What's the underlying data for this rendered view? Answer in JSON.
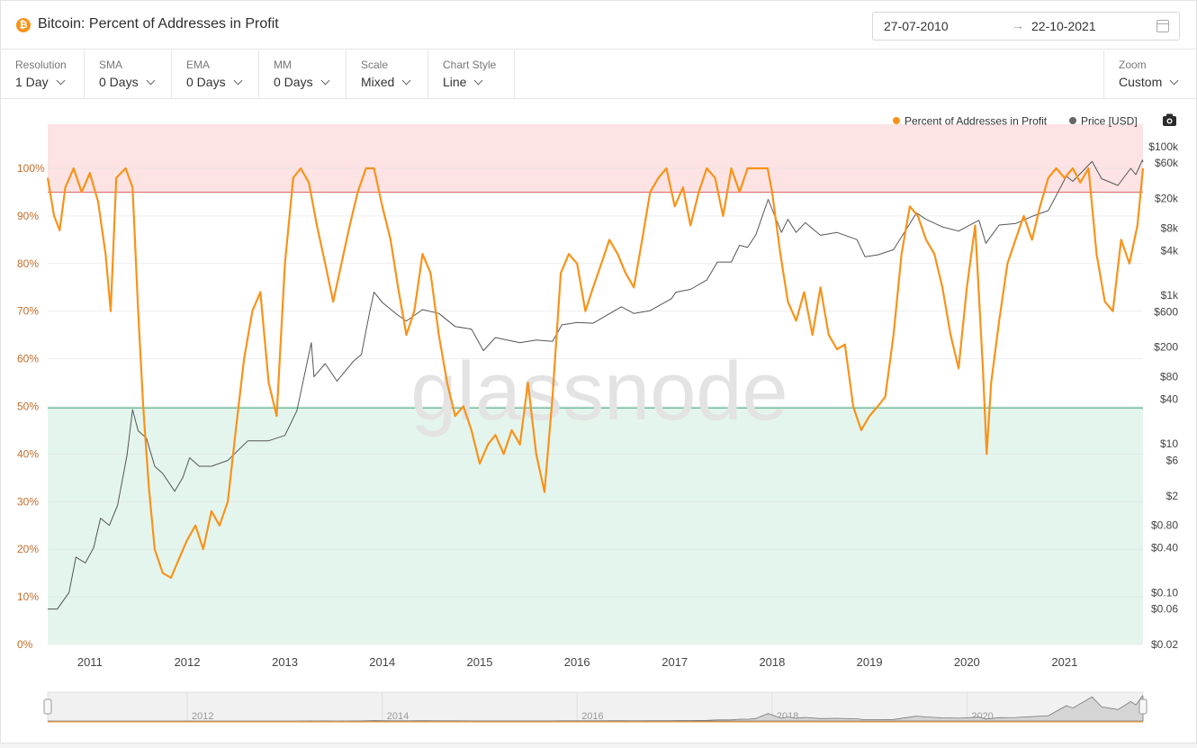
{
  "header": {
    "title": "Bitcoin: Percent of Addresses in Profit",
    "date_from": "27-07-2010",
    "date_arrow": "→",
    "date_to": "22-10-2021"
  },
  "controls": [
    {
      "label": "Resolution",
      "value": "1 Day"
    },
    {
      "label": "SMA",
      "value": "0 Days"
    },
    {
      "label": "EMA",
      "value": "0 Days"
    },
    {
      "label": "MM",
      "value": "0 Days"
    },
    {
      "label": "Scale",
      "value": "Mixed"
    },
    {
      "label": "Chart Style",
      "value": "Line"
    }
  ],
  "zoom": {
    "label": "Zoom",
    "value": "Custom"
  },
  "watermark": "glassnode",
  "colors": {
    "profit": "#f7931a",
    "price": "#555555",
    "upper_band": "#fde3e3",
    "lower_band": "#e4f5ee",
    "upper_line": "#e06666",
    "lower_line": "#2e9e6e"
  },
  "chart_data": {
    "type": "line",
    "title": "Bitcoin: Percent of Addresses in Profit",
    "x_range": [
      "2010-07-27",
      "2021-10-22"
    ],
    "x_ticks": [
      "2011",
      "2012",
      "2013",
      "2014",
      "2015",
      "2016",
      "2017",
      "2018",
      "2019",
      "2020",
      "2021"
    ],
    "left_axis": {
      "scale": "linear",
      "range": [
        0,
        100
      ],
      "ticks": [
        "0%",
        "10%",
        "20%",
        "30%",
        "40%",
        "50%",
        "60%",
        "70%",
        "80%",
        "90%",
        "100%"
      ]
    },
    "right_axis": {
      "scale": "log",
      "range": [
        0.02,
        200000
      ],
      "ticks": [
        {
          "label": "$0.02",
          "value": 0.02
        },
        {
          "label": "$0.06",
          "value": 0.06
        },
        {
          "label": "$0.10",
          "value": 0.1
        },
        {
          "label": "$0.40",
          "value": 0.4
        },
        {
          "label": "$0.80",
          "value": 0.8
        },
        {
          "label": "$2",
          "value": 2
        },
        {
          "label": "$6",
          "value": 6
        },
        {
          "label": "$10",
          "value": 10
        },
        {
          "label": "$40",
          "value": 40
        },
        {
          "label": "$80",
          "value": 80
        },
        {
          "label": "$200",
          "value": 200
        },
        {
          "label": "$600",
          "value": 600
        },
        {
          "label": "$1k",
          "value": 1000
        },
        {
          "label": "$4k",
          "value": 4000
        },
        {
          "label": "$8k",
          "value": 8000
        },
        {
          "label": "$20k",
          "value": 20000
        },
        {
          "label": "$60k",
          "value": 60000
        },
        {
          "label": "$100k",
          "value": 100000
        }
      ]
    },
    "bands": {
      "upper": [
        95,
        109
      ],
      "lower": [
        0,
        49.7
      ]
    },
    "legend": [
      {
        "name": "Percent of Addresses in Profit",
        "color": "#f7931a"
      },
      {
        "name": "Price [USD]",
        "color": "#666666"
      }
    ],
    "legend_position": "top-right",
    "grid": true,
    "series": [
      {
        "name": "Percent of Addresses in Profit",
        "axis": "left",
        "points": [
          [
            "2010-07-27",
            98
          ],
          [
            "2010-08-20",
            90
          ],
          [
            "2010-09-10",
            87
          ],
          [
            "2010-10-01",
            96
          ],
          [
            "2010-11-01",
            100
          ],
          [
            "2010-12-01",
            95
          ],
          [
            "2011-01-01",
            99
          ],
          [
            "2011-02-01",
            93
          ],
          [
            "2011-03-01",
            82
          ],
          [
            "2011-03-20",
            70
          ],
          [
            "2011-04-10",
            98
          ],
          [
            "2011-05-15",
            100
          ],
          [
            "2011-06-10",
            96
          ],
          [
            "2011-07-01",
            70
          ],
          [
            "2011-07-20",
            50
          ],
          [
            "2011-08-10",
            33
          ],
          [
            "2011-09-01",
            20
          ],
          [
            "2011-10-01",
            15
          ],
          [
            "2011-11-01",
            14
          ],
          [
            "2011-12-01",
            18
          ],
          [
            "2012-01-01",
            22
          ],
          [
            "2012-02-01",
            25
          ],
          [
            "2012-03-01",
            20
          ],
          [
            "2012-04-01",
            28
          ],
          [
            "2012-05-01",
            25
          ],
          [
            "2012-06-01",
            30
          ],
          [
            "2012-07-01",
            45
          ],
          [
            "2012-08-01",
            60
          ],
          [
            "2012-09-01",
            70
          ],
          [
            "2012-10-01",
            74
          ],
          [
            "2012-11-01",
            55
          ],
          [
            "2012-12-01",
            48
          ],
          [
            "2013-01-01",
            80
          ],
          [
            "2013-02-01",
            98
          ],
          [
            "2013-03-01",
            100
          ],
          [
            "2013-04-01",
            97
          ],
          [
            "2013-05-01",
            88
          ],
          [
            "2013-06-01",
            80
          ],
          [
            "2013-07-01",
            72
          ],
          [
            "2013-08-01",
            80
          ],
          [
            "2013-09-01",
            88
          ],
          [
            "2013-10-01",
            95
          ],
          [
            "2013-11-01",
            100
          ],
          [
            "2013-12-01",
            100
          ],
          [
            "2014-01-01",
            92
          ],
          [
            "2014-02-01",
            85
          ],
          [
            "2014-03-01",
            75
          ],
          [
            "2014-04-01",
            65
          ],
          [
            "2014-05-01",
            70
          ],
          [
            "2014-06-01",
            82
          ],
          [
            "2014-07-01",
            78
          ],
          [
            "2014-08-01",
            65
          ],
          [
            "2014-09-01",
            55
          ],
          [
            "2014-10-01",
            48
          ],
          [
            "2014-11-01",
            50
          ],
          [
            "2014-12-01",
            45
          ],
          [
            "2015-01-01",
            38
          ],
          [
            "2015-02-01",
            42
          ],
          [
            "2015-03-01",
            44
          ],
          [
            "2015-04-01",
            40
          ],
          [
            "2015-05-01",
            45
          ],
          [
            "2015-06-01",
            42
          ],
          [
            "2015-07-01",
            55
          ],
          [
            "2015-08-01",
            40
          ],
          [
            "2015-09-01",
            32
          ],
          [
            "2015-10-01",
            52
          ],
          [
            "2015-11-01",
            78
          ],
          [
            "2015-12-01",
            82
          ],
          [
            "2016-01-01",
            80
          ],
          [
            "2016-02-01",
            70
          ],
          [
            "2016-03-01",
            75
          ],
          [
            "2016-04-01",
            80
          ],
          [
            "2016-05-01",
            85
          ],
          [
            "2016-06-01",
            82
          ],
          [
            "2016-07-01",
            78
          ],
          [
            "2016-08-01",
            75
          ],
          [
            "2016-09-01",
            85
          ],
          [
            "2016-10-01",
            95
          ],
          [
            "2016-11-01",
            98
          ],
          [
            "2016-12-01",
            100
          ],
          [
            "2017-01-01",
            92
          ],
          [
            "2017-02-01",
            96
          ],
          [
            "2017-03-01",
            88
          ],
          [
            "2017-04-01",
            95
          ],
          [
            "2017-05-01",
            100
          ],
          [
            "2017-06-01",
            98
          ],
          [
            "2017-07-01",
            90
          ],
          [
            "2017-08-01",
            100
          ],
          [
            "2017-09-01",
            95
          ],
          [
            "2017-10-01",
            100
          ],
          [
            "2017-11-01",
            100
          ],
          [
            "2017-12-15",
            100
          ],
          [
            "2018-01-01",
            95
          ],
          [
            "2018-02-01",
            82
          ],
          [
            "2018-03-01",
            72
          ],
          [
            "2018-04-01",
            68
          ],
          [
            "2018-05-01",
            74
          ],
          [
            "2018-06-01",
            65
          ],
          [
            "2018-07-01",
            75
          ],
          [
            "2018-08-01",
            65
          ],
          [
            "2018-09-01",
            62
          ],
          [
            "2018-10-01",
            63
          ],
          [
            "2018-11-01",
            50
          ],
          [
            "2018-12-01",
            45
          ],
          [
            "2019-01-01",
            48
          ],
          [
            "2019-02-01",
            50
          ],
          [
            "2019-03-01",
            52
          ],
          [
            "2019-04-01",
            65
          ],
          [
            "2019-05-01",
            82
          ],
          [
            "2019-06-01",
            92
          ],
          [
            "2019-07-01",
            90
          ],
          [
            "2019-08-01",
            85
          ],
          [
            "2019-09-01",
            82
          ],
          [
            "2019-10-01",
            75
          ],
          [
            "2019-11-01",
            65
          ],
          [
            "2019-12-01",
            58
          ],
          [
            "2020-01-01",
            75
          ],
          [
            "2020-02-01",
            88
          ],
          [
            "2020-03-01",
            58
          ],
          [
            "2020-03-15",
            40
          ],
          [
            "2020-04-01",
            55
          ],
          [
            "2020-05-01",
            68
          ],
          [
            "2020-06-01",
            80
          ],
          [
            "2020-07-01",
            85
          ],
          [
            "2020-08-01",
            90
          ],
          [
            "2020-09-01",
            85
          ],
          [
            "2020-10-01",
            92
          ],
          [
            "2020-11-01",
            98
          ],
          [
            "2020-12-01",
            100
          ],
          [
            "2021-01-01",
            98
          ],
          [
            "2021-02-01",
            100
          ],
          [
            "2021-03-01",
            97
          ],
          [
            "2021-04-01",
            100
          ],
          [
            "2021-05-01",
            82
          ],
          [
            "2021-06-01",
            72
          ],
          [
            "2021-07-01",
            70
          ],
          [
            "2021-08-01",
            85
          ],
          [
            "2021-09-01",
            80
          ],
          [
            "2021-10-01",
            88
          ],
          [
            "2021-10-22",
            100
          ]
        ]
      },
      {
        "name": "Price [USD]",
        "axis": "right",
        "points": [
          [
            "2010-07-27",
            0.06
          ],
          [
            "2010-09-01",
            0.06
          ],
          [
            "2010-10-15",
            0.1
          ],
          [
            "2010-11-10",
            0.3
          ],
          [
            "2010-12-15",
            0.25
          ],
          [
            "2011-01-15",
            0.4
          ],
          [
            "2011-02-10",
            1
          ],
          [
            "2011-03-15",
            0.8
          ],
          [
            "2011-04-15",
            1.5
          ],
          [
            "2011-05-20",
            7
          ],
          [
            "2011-06-10",
            29
          ],
          [
            "2011-07-01",
            15
          ],
          [
            "2011-08-01",
            12
          ],
          [
            "2011-09-01",
            5
          ],
          [
            "2011-10-01",
            4
          ],
          [
            "2011-11-15",
            2.3
          ],
          [
            "2011-12-15",
            3.5
          ],
          [
            "2012-01-10",
            6.5
          ],
          [
            "2012-02-15",
            5
          ],
          [
            "2012-04-01",
            5
          ],
          [
            "2012-06-01",
            6
          ],
          [
            "2012-08-15",
            11
          ],
          [
            "2012-09-15",
            11
          ],
          [
            "2012-11-01",
            11
          ],
          [
            "2013-01-01",
            13
          ],
          [
            "2013-02-15",
            28
          ],
          [
            "2013-04-10",
            230
          ],
          [
            "2013-04-20",
            80
          ],
          [
            "2013-06-01",
            120
          ],
          [
            "2013-07-15",
            70
          ],
          [
            "2013-09-15",
            130
          ],
          [
            "2013-10-15",
            160
          ],
          [
            "2013-11-15",
            600
          ],
          [
            "2013-12-01",
            1100
          ],
          [
            "2014-01-01",
            800
          ],
          [
            "2014-02-25",
            550
          ],
          [
            "2014-04-01",
            450
          ],
          [
            "2014-06-01",
            640
          ],
          [
            "2014-08-01",
            570
          ],
          [
            "2014-10-01",
            380
          ],
          [
            "2014-12-01",
            350
          ],
          [
            "2015-01-15",
            180
          ],
          [
            "2015-03-01",
            270
          ],
          [
            "2015-06-01",
            230
          ],
          [
            "2015-08-01",
            250
          ],
          [
            "2015-10-01",
            240
          ],
          [
            "2015-11-05",
            400
          ],
          [
            "2016-01-01",
            430
          ],
          [
            "2016-03-01",
            420
          ],
          [
            "2016-06-15",
            700
          ],
          [
            "2016-08-01",
            570
          ],
          [
            "2016-10-01",
            620
          ],
          [
            "2016-12-20",
            900
          ],
          [
            "2017-01-05",
            1100
          ],
          [
            "2017-03-01",
            1200
          ],
          [
            "2017-05-01",
            1600
          ],
          [
            "2017-06-10",
            2800
          ],
          [
            "2017-08-01",
            2800
          ],
          [
            "2017-09-01",
            4700
          ],
          [
            "2017-10-01",
            4400
          ],
          [
            "2017-11-01",
            6500
          ],
          [
            "2017-12-17",
            19500
          ],
          [
            "2018-02-05",
            7000
          ],
          [
            "2018-03-01",
            10500
          ],
          [
            "2018-04-01",
            7000
          ],
          [
            "2018-05-05",
            9500
          ],
          [
            "2018-07-01",
            6400
          ],
          [
            "2018-09-01",
            7000
          ],
          [
            "2018-11-15",
            5600
          ],
          [
            "2018-12-15",
            3300
          ],
          [
            "2019-02-01",
            3500
          ],
          [
            "2019-04-01",
            4100
          ],
          [
            "2019-06-26",
            12800
          ],
          [
            "2019-08-01",
            10500
          ],
          [
            "2019-10-01",
            8300
          ],
          [
            "2019-12-01",
            7300
          ],
          [
            "2020-02-15",
            10200
          ],
          [
            "2020-03-12",
            5000
          ],
          [
            "2020-05-01",
            8800
          ],
          [
            "2020-07-01",
            9200
          ],
          [
            "2020-09-01",
            11500
          ],
          [
            "2020-11-01",
            13800
          ],
          [
            "2021-01-08",
            40000
          ],
          [
            "2021-02-01",
            34000
          ],
          [
            "2021-04-14",
            63000
          ],
          [
            "2021-05-20",
            37000
          ],
          [
            "2021-07-20",
            30000
          ],
          [
            "2021-09-06",
            51000
          ],
          [
            "2021-09-25",
            42000
          ],
          [
            "2021-10-20",
            66000
          ],
          [
            "2021-10-22",
            62000
          ]
        ]
      }
    ]
  }
}
